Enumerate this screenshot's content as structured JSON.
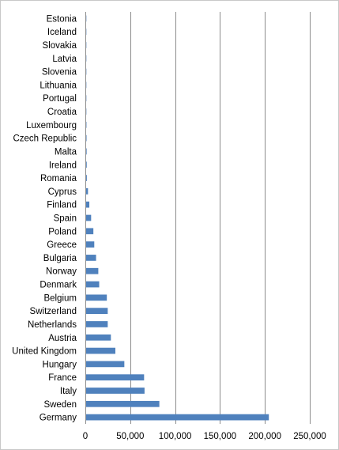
{
  "chart_data": {
    "type": "bar",
    "orientation": "horizontal",
    "title": "",
    "xlabel": "",
    "ylabel": "",
    "xlim": [
      0,
      250000
    ],
    "xticks": [
      0,
      50000,
      100000,
      150000,
      200000,
      250000
    ],
    "xtick_labels": [
      "0",
      "50,000",
      "100,000",
      "150,000",
      "200,000",
      "250,000"
    ],
    "grid": "vertical",
    "legend": "none",
    "bar_color": "#4f81bd",
    "categories": [
      "Estonia",
      "Iceland",
      "Slovakia",
      "Latvia",
      "Slovenia",
      "Lithuania",
      "Portugal",
      "Croatia",
      "Luxembourg",
      "Czech Republic",
      "Malta",
      "Ireland",
      "Romania",
      "Cyprus",
      "Finland",
      "Spain",
      "Poland",
      "Greece",
      "Bulgaria",
      "Norway",
      "Denmark",
      "Belgium",
      "Switzerland",
      "Netherlands",
      "Austria",
      "United Kingdom",
      "Hungary",
      "France",
      "Italy",
      "Sweden",
      "Germany"
    ],
    "values": [
      300,
      350,
      400,
      450,
      500,
      550,
      600,
      700,
      800,
      900,
      1000,
      1100,
      1200,
      2500,
      4000,
      6000,
      8500,
      9500,
      11500,
      14000,
      15000,
      23500,
      24500,
      24500,
      28000,
      33000,
      43000,
      65000,
      65500,
      82000,
      204000
    ]
  }
}
